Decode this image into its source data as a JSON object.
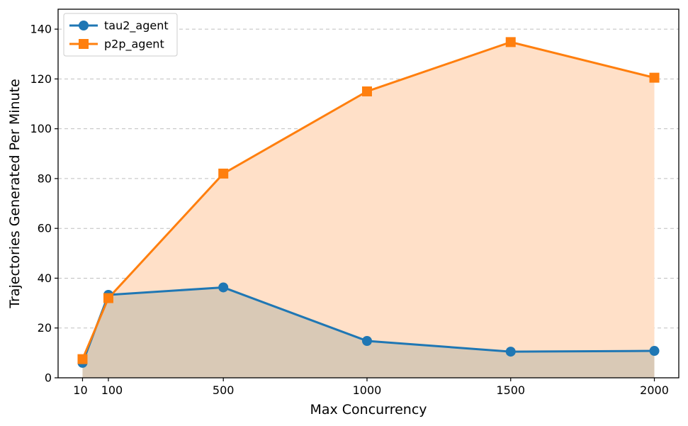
{
  "chart_data": {
    "type": "line",
    "title": "",
    "xlabel": "Max Concurrency",
    "ylabel": "Trajectories Generated Per Minute",
    "x": [
      10,
      100,
      500,
      1000,
      1500,
      2000
    ],
    "xticks": [
      10,
      100,
      500,
      1000,
      1500,
      2000
    ],
    "yticks": [
      0,
      20,
      40,
      60,
      80,
      100,
      120,
      140
    ],
    "xlim": [
      -75,
      2085
    ],
    "ylim": [
      0,
      148
    ],
    "grid": "horizontal dashed",
    "legend_position": "top-left",
    "series": [
      {
        "name": "tau2_agent",
        "values": [
          6,
          33.3,
          36.3,
          14.8,
          10.5,
          10.8
        ],
        "color": "#1f77b4",
        "fill": "#d2c4b3",
        "marker": "circle"
      },
      {
        "name": "p2p_agent",
        "values": [
          7.5,
          32,
          82,
          115,
          134.8,
          120.5
        ],
        "color": "#ff7f0e",
        "fill": "#ffe0c8",
        "marker": "square"
      }
    ]
  }
}
